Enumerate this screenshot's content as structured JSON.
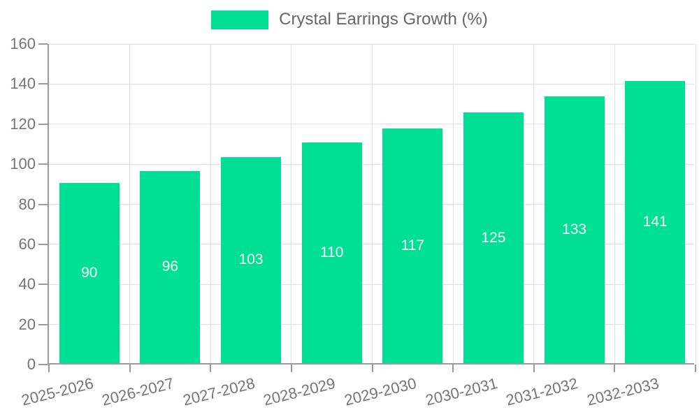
{
  "legend": {
    "label": "Crystal Earrings Growth (%)"
  },
  "chart_data": {
    "type": "bar",
    "title": "Crystal Earrings Growth (%)",
    "categories": [
      "2025-2026",
      "2026-2027",
      "2027-2028",
      "2028-2029",
      "2029-2030",
      "2030-2031",
      "2031-2032",
      "2032-2033"
    ],
    "values": [
      90,
      96,
      103,
      110,
      117,
      125,
      133,
      141
    ],
    "xlabel": "",
    "ylabel": "",
    "ylim": [
      0,
      160
    ],
    "yticks": [
      0,
      20,
      40,
      60,
      80,
      100,
      120,
      140,
      160
    ],
    "grid": true,
    "legend_position": "top",
    "bar_color": "#00df94",
    "value_label_color": "#ffffff",
    "axis_color": "#9b9b9b",
    "grid_color": "#e0e0e0",
    "tick_label_color": "#757575",
    "legend_text_color": "#666666"
  }
}
